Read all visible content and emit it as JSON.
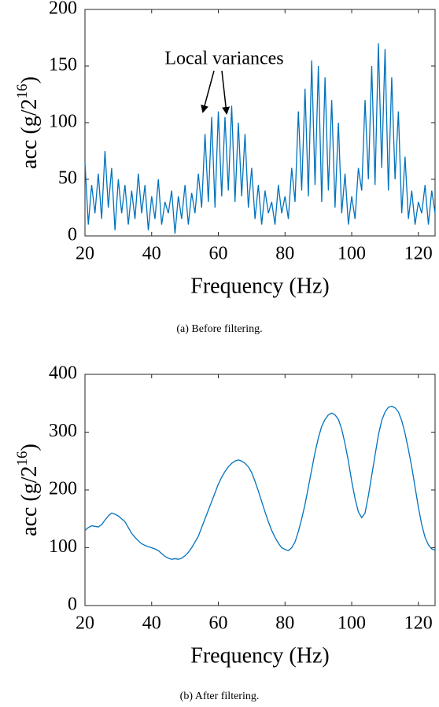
{
  "chart_data": [
    {
      "type": "line",
      "caption": "(a) Before filtering.",
      "x_label": "Frequency (Hz)",
      "y_label": [
        "acc (g/2",
        "16",
        ")"
      ],
      "annotation": "Local variances",
      "x": [
        20,
        21,
        22,
        23,
        24,
        25,
        26,
        27,
        28,
        29,
        30,
        31,
        32,
        33,
        34,
        35,
        36,
        37,
        38,
        39,
        40,
        41,
        42,
        43,
        44,
        45,
        46,
        47,
        48,
        49,
        50,
        51,
        52,
        53,
        54,
        55,
        56,
        57,
        58,
        59,
        60,
        61,
        62,
        63,
        64,
        65,
        66,
        67,
        68,
        69,
        70,
        71,
        72,
        73,
        74,
        75,
        76,
        77,
        78,
        79,
        80,
        81,
        82,
        83,
        84,
        85,
        86,
        87,
        88,
        89,
        90,
        91,
        92,
        93,
        94,
        95,
        96,
        97,
        98,
        99,
        100,
        101,
        102,
        103,
        104,
        105,
        106,
        107,
        108,
        109,
        110,
        111,
        112,
        113,
        114,
        115,
        116,
        117,
        118,
        119,
        120,
        121,
        122,
        123,
        124,
        125
      ],
      "series": [
        {
          "color": "#0072bd",
          "values": [
            65,
            10,
            45,
            20,
            55,
            15,
            75,
            25,
            60,
            5,
            50,
            20,
            45,
            10,
            40,
            15,
            55,
            20,
            45,
            5,
            35,
            15,
            50,
            10,
            30,
            20,
            40,
            2,
            35,
            15,
            45,
            10,
            38,
            20,
            55,
            25,
            90,
            30,
            105,
            25,
            110,
            35,
            105,
            40,
            115,
            30,
            100,
            35,
            90,
            25,
            60,
            15,
            45,
            10,
            40,
            20,
            30,
            10,
            45,
            20,
            35,
            15,
            60,
            30,
            110,
            40,
            130,
            35,
            155,
            45,
            150,
            30,
            140,
            40,
            120,
            25,
            100,
            20,
            55,
            10,
            35,
            15,
            60,
            40,
            120,
            50,
            150,
            45,
            170,
            60,
            165,
            40,
            140,
            50,
            110,
            20,
            70,
            15,
            40,
            10,
            30,
            20,
            45,
            10,
            40,
            20
          ]
        }
      ],
      "xlim": [
        20,
        125
      ],
      "ylim": [
        0,
        200
      ],
      "xticks": [
        20,
        40,
        60,
        80,
        100,
        120
      ],
      "yticks": [
        0,
        50,
        100,
        150,
        200
      ]
    },
    {
      "type": "line",
      "caption": "(b) After filtering.",
      "x_label": "Frequency (Hz)",
      "y_label": [
        "acc (g/2",
        "16",
        ")"
      ],
      "x": [
        20,
        21,
        22,
        23,
        24,
        25,
        26,
        27,
        28,
        29,
        30,
        31,
        32,
        33,
        34,
        35,
        36,
        37,
        38,
        39,
        40,
        41,
        42,
        43,
        44,
        45,
        46,
        47,
        48,
        49,
        50,
        51,
        52,
        53,
        54,
        55,
        56,
        57,
        58,
        59,
        60,
        61,
        62,
        63,
        64,
        65,
        66,
        67,
        68,
        69,
        70,
        71,
        72,
        73,
        74,
        75,
        76,
        77,
        78,
        79,
        80,
        81,
        82,
        83,
        84,
        85,
        86,
        87,
        88,
        89,
        90,
        91,
        92,
        93,
        94,
        95,
        96,
        97,
        98,
        99,
        100,
        101,
        102,
        103,
        104,
        105,
        106,
        107,
        108,
        109,
        110,
        111,
        112,
        113,
        114,
        115,
        116,
        117,
        118,
        119,
        120,
        121,
        122,
        123,
        124,
        125
      ],
      "series": [
        {
          "color": "#0072bd",
          "values": [
            130,
            135,
            138,
            137,
            136,
            140,
            148,
            155,
            160,
            158,
            155,
            150,
            145,
            135,
            125,
            118,
            112,
            107,
            104,
            102,
            100,
            98,
            95,
            90,
            85,
            82,
            80,
            81,
            80,
            82,
            86,
            92,
            100,
            110,
            120,
            135,
            150,
            165,
            180,
            195,
            210,
            222,
            232,
            240,
            246,
            250,
            252,
            250,
            246,
            240,
            230,
            215,
            198,
            180,
            162,
            145,
            130,
            118,
            108,
            100,
            97,
            95,
            100,
            110,
            128,
            150,
            175,
            205,
            235,
            265,
            290,
            310,
            322,
            330,
            333,
            330,
            322,
            305,
            280,
            250,
            215,
            185,
            162,
            152,
            160,
            190,
            225,
            260,
            295,
            320,
            335,
            343,
            345,
            342,
            335,
            320,
            298,
            270,
            240,
            205,
            170,
            140,
            118,
            105,
            98,
            96
          ]
        }
      ],
      "xlim": [
        20,
        125
      ],
      "ylim": [
        0,
        400
      ],
      "xticks": [
        20,
        40,
        60,
        80,
        100,
        120
      ],
      "yticks": [
        0,
        100,
        200,
        300,
        400
      ]
    }
  ]
}
